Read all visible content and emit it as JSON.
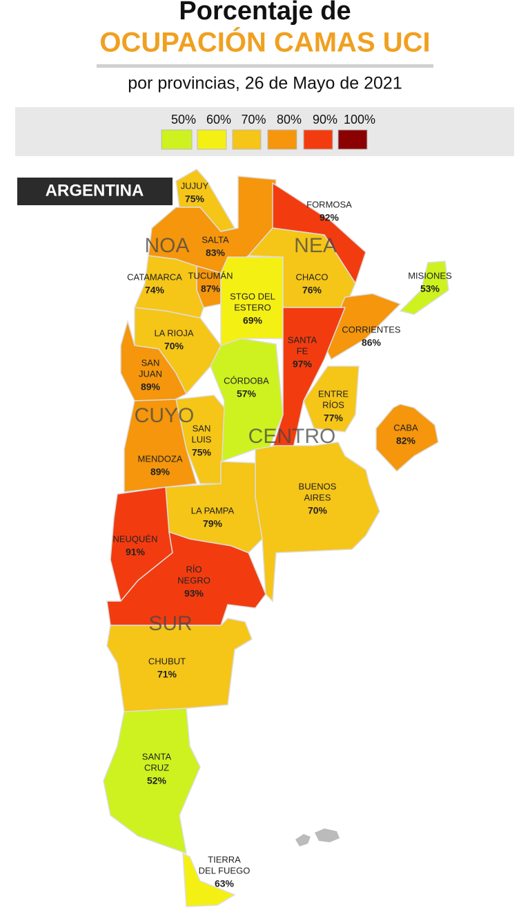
{
  "header": {
    "title": "Porcentaje de",
    "highlight": "OCUPACIÓN CAMAS UCI",
    "subtitle": "por provincias, 26 de Mayo de 2021"
  },
  "legend": [
    {
      "value": 50,
      "label": "50%",
      "color": "#cdf21f"
    },
    {
      "value": 60,
      "label": "60%",
      "color": "#f5f014"
    },
    {
      "value": 70,
      "label": "70%",
      "color": "#f5c518"
    },
    {
      "value": 80,
      "label": "80%",
      "color": "#f5960c"
    },
    {
      "value": 90,
      "label": "90%",
      "color": "#f23c10"
    },
    {
      "value": 100,
      "label": "100%",
      "color": "#8b0000"
    }
  ],
  "map": {
    "country": "ARGENTINA",
    "regions": [
      "NOA",
      "NEA",
      "CUYO",
      "CENTRO",
      "SUR"
    ],
    "provinces": [
      {
        "name": [
          "JUJUY"
        ],
        "value": 75,
        "value_label": "75%"
      },
      {
        "name": [
          "SALTA"
        ],
        "value": 83,
        "value_label": "83%"
      },
      {
        "name": [
          "FORMOSA"
        ],
        "value": 92,
        "value_label": "92%"
      },
      {
        "name": [
          "CHACO"
        ],
        "value": 76,
        "value_label": "76%"
      },
      {
        "name": [
          "MISIONES"
        ],
        "value": 53,
        "value_label": "53%"
      },
      {
        "name": [
          "TUCUMÁN"
        ],
        "value": 87,
        "value_label": "87%"
      },
      {
        "name": [
          "CATAMARCA"
        ],
        "value": 74,
        "value_label": "74%"
      },
      {
        "name": [
          "STGO DEL",
          "ESTERO"
        ],
        "value": 69,
        "value_label": "69%"
      },
      {
        "name": [
          "LA RIOJA"
        ],
        "value": 70,
        "value_label": "70%"
      },
      {
        "name": [
          "CORRIENTES"
        ],
        "value": 86,
        "value_label": "86%"
      },
      {
        "name": [
          "SANTA",
          "FE"
        ],
        "value": 97,
        "value_label": "97%"
      },
      {
        "name": [
          "SAN",
          "JUAN"
        ],
        "value": 89,
        "value_label": "89%"
      },
      {
        "name": [
          "CÓRDOBA"
        ],
        "value": 57,
        "value_label": "57%"
      },
      {
        "name": [
          "ENTRE",
          "RÍOS"
        ],
        "value": 77,
        "value_label": "77%"
      },
      {
        "name": [
          "SAN",
          "LUIS"
        ],
        "value": 75,
        "value_label": "75%"
      },
      {
        "name": [
          "MENDOZA"
        ],
        "value": 89,
        "value_label": "89%"
      },
      {
        "name": [
          "CABA"
        ],
        "value": 82,
        "value_label": "82%"
      },
      {
        "name": [
          "BUENOS",
          "AIRES"
        ],
        "value": 70,
        "value_label": "70%"
      },
      {
        "name": [
          "LA PAMPA"
        ],
        "value": 79,
        "value_label": "79%"
      },
      {
        "name": [
          "NEUQUÉN"
        ],
        "value": 91,
        "value_label": "91%"
      },
      {
        "name": [
          "RÍO",
          "NEGRO"
        ],
        "value": 93,
        "value_label": "93%"
      },
      {
        "name": [
          "CHUBUT"
        ],
        "value": 71,
        "value_label": "71%"
      },
      {
        "name": [
          "SANTA",
          "CRUZ"
        ],
        "value": 52,
        "value_label": "52%"
      },
      {
        "name": [
          "TIERRA",
          "DEL FUEGO"
        ],
        "value": 63,
        "value_label": "63%"
      }
    ]
  }
}
